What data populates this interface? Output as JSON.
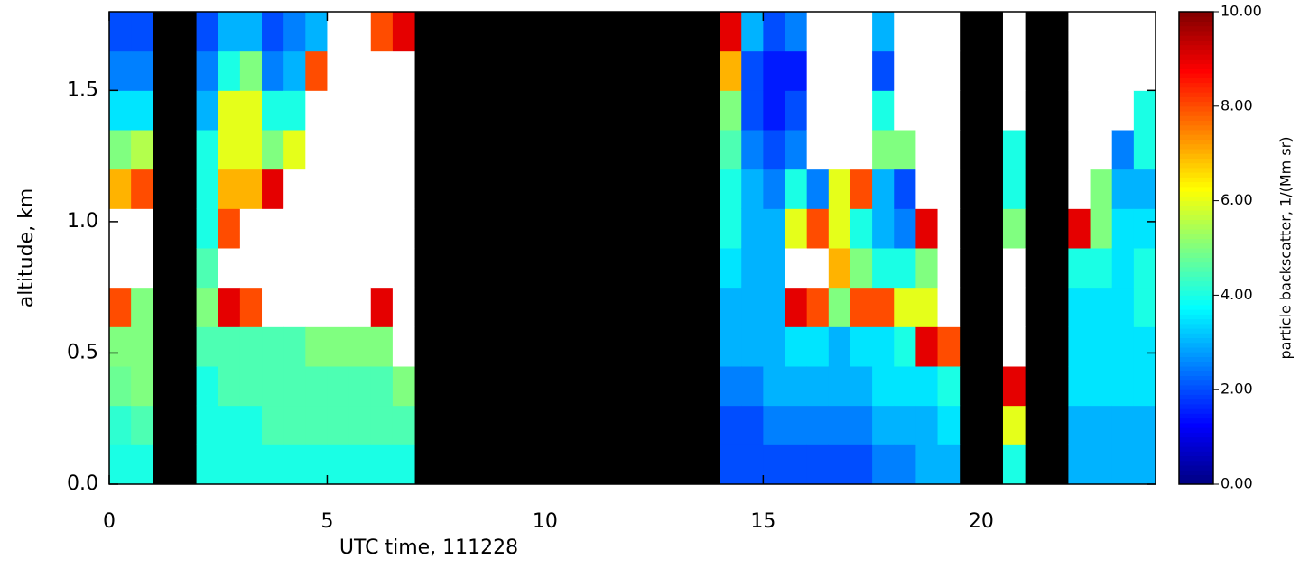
{
  "chart_data": {
    "type": "heatmap",
    "xlabel": "UTC time, 111228",
    "ylabel": "altitude, km",
    "colorbar_label": "particle backscatter, 1/(Mm sr)",
    "colormap": "jet",
    "over_color": "#ffffff",
    "bad_color": "#000000",
    "xlim": [
      0,
      24
    ],
    "xticks": [
      0,
      5,
      10,
      15,
      20
    ],
    "ylim": [
      0,
      1.8
    ],
    "yticks": [
      {
        "value": 0,
        "label": "0.0"
      },
      0.5,
      {
        "value": 1,
        "label": "1.0"
      },
      1.5
    ],
    "clim": [
      0,
      10
    ],
    "cticks": [
      {
        "value": 0,
        "label": "0.00"
      },
      {
        "value": 2,
        "label": "2.00"
      },
      {
        "value": 4,
        "label": "4.00"
      },
      {
        "value": 6,
        "label": "6.00"
      },
      {
        "value": 8,
        "label": "8.00"
      },
      {
        "value": 10,
        "label": "10.00"
      }
    ],
    "x": [
      0.25,
      0.75,
      1.25,
      1.75,
      2.25,
      2.75,
      3.25,
      3.75,
      4.25,
      4.75,
      5.25,
      5.75,
      6.25,
      6.75,
      7.25,
      7.75,
      8.25,
      8.75,
      9.25,
      9.75,
      10.25,
      10.75,
      11.25,
      11.75,
      12.25,
      12.75,
      13.25,
      13.75,
      14.25,
      14.75,
      15.25,
      15.75,
      16.25,
      16.75,
      17.25,
      17.75,
      18.25,
      18.75,
      19.25,
      19.75,
      20.25,
      20.75,
      21.25,
      21.75,
      22.25,
      22.75,
      23.25,
      23.75
    ],
    "y": [
      0.075,
      0.225,
      0.375,
      0.525,
      0.675,
      0.825,
      0.975,
      1.125,
      1.275,
      1.425,
      1.575,
      1.725
    ],
    "z": [
      [
        4,
        4.2,
        4.8,
        5,
        8,
        11,
        11,
        7,
        5,
        3.5,
        2.5,
        2
      ],
      [
        4,
        4.5,
        5,
        5,
        5,
        11,
        11,
        8,
        5.5,
        3.5,
        2.5,
        2
      ],
      [
        null,
        null,
        null,
        null,
        null,
        null,
        null,
        null,
        null,
        null,
        null,
        null
      ],
      [
        null,
        null,
        null,
        null,
        null,
        null,
        null,
        null,
        null,
        null,
        null,
        null
      ],
      [
        4,
        4,
        4,
        4.5,
        5,
        4.5,
        4,
        4,
        4,
        3,
        2.5,
        2
      ],
      [
        4,
        4,
        4.5,
        4.5,
        9,
        11,
        8,
        7,
        6,
        6,
        4,
        3
      ],
      [
        4,
        4,
        4.5,
        4.5,
        8,
        11,
        11,
        7,
        6,
        6,
        5,
        3
      ],
      [
        4,
        4.5,
        4.5,
        4.5,
        11,
        11,
        11,
        9,
        5,
        4,
        2.5,
        2
      ],
      [
        4,
        4.5,
        4.5,
        4.5,
        11,
        11,
        11,
        11,
        6,
        4,
        3,
        2.5
      ],
      [
        4,
        4.5,
        4.5,
        5,
        11,
        11,
        11,
        11,
        11,
        11,
        8,
        3
      ],
      [
        4,
        4.5,
        4.5,
        5,
        11,
        11,
        11,
        11,
        11,
        11,
        11,
        11
      ],
      [
        4,
        4.5,
        4.5,
        5,
        11,
        11,
        11,
        11,
        11,
        11,
        11,
        11
      ],
      [
        4,
        4.5,
        4.5,
        5,
        9,
        11,
        11,
        11,
        11,
        11,
        11,
        8
      ],
      [
        4,
        4.5,
        5,
        11,
        11,
        11,
        11,
        11,
        11,
        11,
        11,
        9
      ],
      [
        null,
        null,
        null,
        null,
        null,
        null,
        null,
        null,
        null,
        null,
        null,
        null
      ],
      [
        null,
        null,
        null,
        null,
        null,
        null,
        null,
        null,
        null,
        null,
        null,
        null
      ],
      [
        null,
        null,
        null,
        null,
        null,
        null,
        null,
        null,
        null,
        null,
        null,
        null
      ],
      [
        null,
        null,
        null,
        null,
        null,
        null,
        null,
        null,
        null,
        null,
        null,
        null
      ],
      [
        null,
        null,
        null,
        null,
        null,
        null,
        null,
        null,
        null,
        null,
        null,
        null
      ],
      [
        null,
        null,
        null,
        null,
        null,
        null,
        null,
        null,
        null,
        null,
        null,
        null
      ],
      [
        null,
        null,
        null,
        null,
        null,
        null,
        null,
        null,
        null,
        null,
        null,
        null
      ],
      [
        null,
        null,
        null,
        null,
        null,
        null,
        null,
        null,
        null,
        null,
        null,
        null
      ],
      [
        null,
        null,
        null,
        null,
        null,
        null,
        null,
        null,
        null,
        null,
        null,
        null
      ],
      [
        null,
        null,
        null,
        null,
        null,
        null,
        null,
        null,
        null,
        null,
        null,
        null
      ],
      [
        null,
        null,
        null,
        null,
        null,
        null,
        null,
        null,
        null,
        null,
        null,
        null
      ],
      [
        null,
        null,
        null,
        null,
        null,
        null,
        null,
        null,
        null,
        null,
        null,
        null
      ],
      [
        null,
        null,
        null,
        null,
        null,
        null,
        null,
        null,
        null,
        null,
        null,
        null
      ],
      [
        null,
        null,
        null,
        null,
        null,
        null,
        null,
        null,
        null,
        null,
        null,
        null
      ],
      [
        2,
        2,
        2.5,
        3,
        3,
        3.5,
        4,
        4,
        4.5,
        5,
        7,
        9
      ],
      [
        2,
        2,
        2.5,
        3,
        3,
        3,
        3,
        3,
        2.5,
        2,
        2,
        3
      ],
      [
        2,
        2.5,
        3,
        3,
        3,
        3,
        3,
        2.5,
        2,
        1.5,
        1.5,
        2
      ],
      [
        2,
        2.5,
        3,
        3.5,
        9,
        11,
        6,
        4,
        2.5,
        2,
        1.5,
        2.5
      ],
      [
        2,
        2.5,
        3,
        3.5,
        8,
        11,
        8,
        2.5,
        11,
        11,
        11,
        11
      ],
      [
        2,
        2.5,
        3,
        3,
        5,
        7,
        6,
        6,
        11,
        11,
        11,
        11
      ],
      [
        2,
        2.5,
        3,
        3.5,
        8,
        5,
        4,
        8,
        11,
        11,
        11,
        11
      ],
      [
        2.5,
        3,
        3.5,
        3.5,
        8,
        4,
        3,
        3,
        5,
        4,
        2,
        3
      ],
      [
        2.5,
        3,
        3.5,
        4,
        6,
        4,
        2.5,
        2,
        5,
        11,
        11,
        11
      ],
      [
        3,
        3,
        3.5,
        9,
        6,
        5,
        9,
        11,
        11,
        11,
        11,
        11
      ],
      [
        3,
        3.5,
        4,
        8,
        11,
        11,
        11,
        11,
        11,
        11,
        11,
        11
      ],
      [
        null,
        null,
        null,
        null,
        null,
        null,
        null,
        null,
        null,
        null,
        null,
        null
      ],
      [
        null,
        null,
        null,
        null,
        null,
        null,
        null,
        null,
        null,
        null,
        null,
        null
      ],
      [
        4,
        6,
        9,
        11,
        11,
        11,
        5,
        4,
        4,
        11,
        11,
        11
      ],
      [
        null,
        null,
        null,
        null,
        null,
        null,
        null,
        null,
        null,
        null,
        null,
        null
      ],
      [
        null,
        null,
        null,
        null,
        null,
        null,
        null,
        null,
        null,
        null,
        null,
        null
      ],
      [
        3,
        3,
        3.5,
        3.5,
        3.5,
        4,
        9,
        11,
        11,
        11,
        11,
        11
      ],
      [
        3,
        3,
        3.5,
        3.5,
        3.5,
        4,
        5,
        5,
        11,
        11,
        11,
        11
      ],
      [
        3,
        3,
        3.5,
        3.5,
        3.5,
        3.5,
        3.5,
        3,
        2.5,
        11,
        11,
        11
      ],
      [
        3,
        3,
        3.5,
        3.5,
        4,
        4,
        3.5,
        3,
        4,
        4,
        11,
        11
      ]
    ]
  }
}
